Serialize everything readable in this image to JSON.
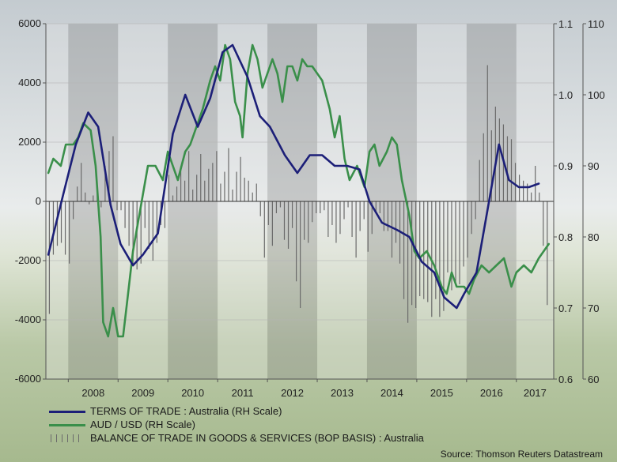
{
  "chart_data": {
    "type": "line",
    "x_type": "year",
    "xlim": [
      2007.55,
      2017.75
    ],
    "x_tick_labels": [
      "2008",
      "2009",
      "2010",
      "2011",
      "2012",
      "2013",
      "2014",
      "2015",
      "2016",
      "2017"
    ],
    "left_axis": {
      "ylim": [
        -6000,
        6000
      ],
      "ticks": [
        -6000,
        -4000,
        -2000,
        0,
        2000,
        4000,
        6000
      ],
      "tick_labels": [
        "-6000",
        "-4000",
        "-2000",
        "0",
        "2000",
        "4000",
        "6000"
      ]
    },
    "right_axis_inner": {
      "ylim": [
        0.6,
        1.1
      ],
      "ticks": [
        0.6,
        0.7,
        0.8,
        0.9,
        1.0,
        1.1
      ],
      "tick_labels": [
        "0.6",
        "0.7",
        "0.8",
        "0.9",
        "1.0",
        "1.1"
      ]
    },
    "right_axis_outer": {
      "ylim": [
        60,
        110
      ],
      "ticks": [
        60,
        70,
        80,
        90,
        100,
        110
      ],
      "tick_labels": [
        "60",
        "70",
        "80",
        "90",
        "100",
        "110"
      ]
    },
    "grid": "horizontal",
    "legend_position": "bottom-left",
    "series": [
      {
        "name": "TERMS OF TRADE : Australia (RH Scale)",
        "kind": "line",
        "axis": "right_outer",
        "color": "#1c1f78",
        "x": [
          2007.6,
          2007.9,
          2008.15,
          2008.4,
          2008.6,
          2008.85,
          2009.05,
          2009.3,
          2009.5,
          2009.8,
          2010.1,
          2010.35,
          2010.6,
          2010.85,
          2011.1,
          2011.3,
          2011.6,
          2011.85,
          2012.05,
          2012.35,
          2012.6,
          2012.85,
          2013.1,
          2013.35,
          2013.6,
          2013.85,
          2014.05,
          2014.3,
          2014.6,
          2014.85,
          2015.1,
          2015.35,
          2015.55,
          2015.8,
          2015.95,
          2016.2,
          2016.45,
          2016.65,
          2016.85,
          2017.05,
          2017.25,
          2017.45
        ],
        "y": [
          77.5,
          86,
          93,
          97.5,
          95.5,
          84.5,
          79,
          76,
          77.5,
          80.5,
          94.5,
          100,
          95.5,
          99.5,
          106,
          107,
          102.5,
          97,
          95.5,
          91.5,
          89,
          91.5,
          91.5,
          90,
          90,
          89.5,
          85,
          82,
          81,
          80,
          76.5,
          75,
          71.5,
          70,
          72,
          75,
          85,
          93,
          88,
          87,
          87,
          87.5
        ]
      },
      {
        "name": "AUD / USD (RH Scale)",
        "kind": "line",
        "axis": "right_inner",
        "color": "#3a8f4a",
        "x": [
          2007.6,
          2007.7,
          2007.85,
          2007.95,
          2008.1,
          2008.2,
          2008.3,
          2008.45,
          2008.55,
          2008.65,
          2008.7,
          2008.8,
          2008.9,
          2009.0,
          2009.1,
          2009.2,
          2009.3,
          2009.5,
          2009.6,
          2009.75,
          2009.9,
          2010.0,
          2010.1,
          2010.2,
          2010.35,
          2010.45,
          2010.6,
          2010.7,
          2010.85,
          2010.95,
          2011.05,
          2011.15,
          2011.25,
          2011.35,
          2011.45,
          2011.5,
          2011.6,
          2011.7,
          2011.8,
          2011.9,
          2012.0,
          2012.1,
          2012.2,
          2012.3,
          2012.4,
          2012.5,
          2012.6,
          2012.7,
          2012.8,
          2012.9,
          2013.0,
          2013.1,
          2013.25,
          2013.35,
          2013.45,
          2013.55,
          2013.65,
          2013.8,
          2013.95,
          2014.05,
          2014.15,
          2014.25,
          2014.4,
          2014.5,
          2014.6,
          2014.7,
          2014.85,
          2014.95,
          2015.05,
          2015.2,
          2015.35,
          2015.5,
          2015.6,
          2015.7,
          2015.8,
          2015.95,
          2016.05,
          2016.15,
          2016.3,
          2016.45,
          2016.6,
          2016.75,
          2016.9,
          2017.0,
          2017.15,
          2017.3,
          2017.45,
          2017.55,
          2017.65
        ],
        "y": [
          0.89,
          0.91,
          0.9,
          0.93,
          0.93,
          0.94,
          0.96,
          0.95,
          0.9,
          0.8,
          0.68,
          0.66,
          0.7,
          0.66,
          0.66,
          0.72,
          0.78,
          0.86,
          0.9,
          0.9,
          0.88,
          0.92,
          0.9,
          0.88,
          0.92,
          0.93,
          0.96,
          0.98,
          1.02,
          1.04,
          1.02,
          1.07,
          1.05,
          0.99,
          0.97,
          0.94,
          1.03,
          1.07,
          1.05,
          1.01,
          1.03,
          1.05,
          1.03,
          0.99,
          1.04,
          1.04,
          1.02,
          1.05,
          1.04,
          1.04,
          1.03,
          1.02,
          0.98,
          0.94,
          0.97,
          0.91,
          0.88,
          0.9,
          0.87,
          0.92,
          0.93,
          0.9,
          0.92,
          0.94,
          0.93,
          0.88,
          0.83,
          0.78,
          0.77,
          0.78,
          0.76,
          0.73,
          0.72,
          0.75,
          0.73,
          0.73,
          0.72,
          0.74,
          0.76,
          0.75,
          0.76,
          0.77,
          0.73,
          0.75,
          0.76,
          0.75,
          0.77,
          0.78,
          0.79
        ]
      },
      {
        "name": "BALANCE OF TRADE IN GOODS & SERVICES (BOP BASIS) : Australia",
        "kind": "bar",
        "axis": "left",
        "color": "#6b6b6b",
        "x": [
          2007.62,
          2007.7,
          2007.78,
          2007.86,
          2007.94,
          2008.02,
          2008.1,
          2008.18,
          2008.26,
          2008.34,
          2008.42,
          2008.5,
          2008.58,
          2008.66,
          2008.74,
          2008.82,
          2008.9,
          2008.98,
          2009.06,
          2009.14,
          2009.22,
          2009.3,
          2009.38,
          2009.46,
          2009.54,
          2009.62,
          2009.7,
          2009.78,
          2009.86,
          2009.94,
          2010.02,
          2010.1,
          2010.18,
          2010.26,
          2010.34,
          2010.42,
          2010.5,
          2010.58,
          2010.66,
          2010.74,
          2010.82,
          2010.9,
          2010.98,
          2011.06,
          2011.14,
          2011.22,
          2011.3,
          2011.38,
          2011.46,
          2011.54,
          2011.62,
          2011.7,
          2011.78,
          2011.86,
          2011.94,
          2012.02,
          2012.1,
          2012.18,
          2012.26,
          2012.34,
          2012.42,
          2012.5,
          2012.58,
          2012.66,
          2012.74,
          2012.82,
          2012.9,
          2012.98,
          2013.06,
          2013.14,
          2013.22,
          2013.3,
          2013.38,
          2013.46,
          2013.54,
          2013.62,
          2013.7,
          2013.78,
          2013.86,
          2013.94,
          2014.02,
          2014.1,
          2014.18,
          2014.26,
          2014.34,
          2014.42,
          2014.5,
          2014.58,
          2014.66,
          2014.74,
          2014.82,
          2014.9,
          2014.98,
          2015.06,
          2015.14,
          2015.22,
          2015.3,
          2015.38,
          2015.46,
          2015.54,
          2015.62,
          2015.7,
          2015.78,
          2015.86,
          2015.94,
          2016.02,
          2016.1,
          2016.18,
          2016.26,
          2016.34,
          2016.42,
          2016.5,
          2016.58,
          2016.66,
          2016.74,
          2016.82,
          2016.9,
          2016.98,
          2017.06,
          2017.14,
          2017.22,
          2017.3,
          2017.38,
          2017.46,
          2017.54,
          2017.62
        ],
        "y": [
          -3800,
          -1800,
          -1500,
          -1400,
          -1800,
          -2100,
          -600,
          500,
          1300,
          300,
          -100,
          200,
          400,
          -200,
          1200,
          1700,
          2200,
          -300,
          -300,
          -900,
          -1500,
          -2200,
          -2300,
          -2100,
          -900,
          -1600,
          -2000,
          -1400,
          -800,
          -900,
          900,
          200,
          500,
          1200,
          700,
          1700,
          400,
          900,
          1600,
          700,
          1100,
          1300,
          1700,
          600,
          1000,
          1800,
          400,
          1000,
          1500,
          800,
          700,
          300,
          600,
          -500,
          -1900,
          -800,
          -1500,
          -400,
          -200,
          -1300,
          -1600,
          -900,
          -2700,
          -3600,
          -1300,
          -1400,
          -700,
          -400,
          -400,
          -300,
          -1200,
          -800,
          -1400,
          -1100,
          -600,
          -200,
          -1200,
          -1900,
          -1000,
          -600,
          -1700,
          -1100,
          -400,
          -400,
          -1000,
          -1000,
          -1900,
          -1400,
          -2100,
          -3300,
          -4100,
          -3500,
          -3600,
          -3200,
          -3300,
          -3400,
          -3900,
          -3300,
          -3900,
          -3700,
          -2400,
          -3000,
          -2800,
          -2800,
          -2200,
          -1900,
          -1100,
          -600,
          1400,
          2300,
          4600,
          2400,
          3200,
          2800,
          2600,
          2200,
          2100,
          1300,
          900,
          700,
          600,
          300,
          1200,
          300,
          -1500,
          -3500
        ]
      }
    ]
  },
  "legend": {
    "items": [
      {
        "label": "TERMS OF TRADE : Australia (RH Scale)",
        "color": "#1c1f78",
        "kind": "line"
      },
      {
        "label": "AUD / USD (RH Scale)",
        "color": "#3a8f4a",
        "kind": "line"
      },
      {
        "label": "BALANCE OF TRADE IN GOODS & SERVICES (BOP BASIS) : Australia",
        "color": "#6b6b6b",
        "kind": "bars"
      }
    ]
  },
  "source": "Source: Thomson Reuters Datastream",
  "colors": {
    "background_top": "#c9cfd3",
    "background_horizon": "#e8ebe9",
    "grass": "#9fb486",
    "band_dark": "#8f8f8f",
    "band_light": "#e6e6e6"
  }
}
